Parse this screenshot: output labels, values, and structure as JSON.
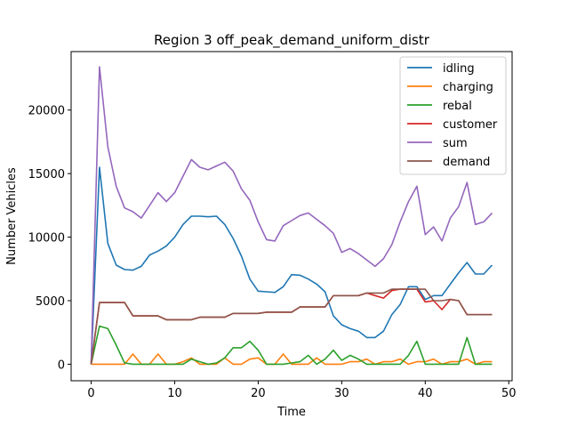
{
  "chart_data": {
    "type": "line",
    "title": "Region 3 off_peak_demand_uniform_distr",
    "xlabel": "Time",
    "ylabel": "Number Vehicles",
    "xlim": [
      -2.4,
      50.4
    ],
    "ylim": [
      -1300,
      24600
    ],
    "xticks": [
      0,
      10,
      20,
      30,
      40,
      50
    ],
    "yticks": [
      0,
      5000,
      10000,
      15000,
      20000
    ],
    "grid": false,
    "legend_position": "top-right",
    "x": [
      0,
      1,
      2,
      3,
      4,
      5,
      6,
      7,
      8,
      9,
      10,
      11,
      12,
      13,
      14,
      15,
      16,
      17,
      18,
      19,
      20,
      21,
      22,
      23,
      24,
      25,
      26,
      27,
      28,
      29,
      30,
      31,
      32,
      33,
      34,
      35,
      36,
      37,
      38,
      39,
      40,
      41,
      42,
      43,
      44,
      45,
      46,
      47,
      48
    ],
    "series": [
      {
        "name": "idling",
        "color": "#1f77b4",
        "values": [
          0,
          15500,
          9500,
          7800,
          7450,
          7400,
          7700,
          8600,
          8900,
          9300,
          10000,
          11000,
          11650,
          11650,
          11600,
          11650,
          11000,
          9900,
          8500,
          6700,
          5750,
          5700,
          5650,
          6100,
          7050,
          7000,
          6700,
          6300,
          5700,
          3800,
          3100,
          2800,
          2600,
          2100,
          2100,
          2600,
          3900,
          4700,
          6100,
          6100,
          5100,
          5400,
          5400,
          6300,
          7200,
          8000,
          7100,
          7100,
          7800
        ]
      },
      {
        "name": "charging",
        "color": "#ff7f0e",
        "values": [
          0,
          0,
          0,
          0,
          0,
          800,
          0,
          0,
          800,
          0,
          0,
          200,
          500,
          0,
          0,
          0,
          500,
          0,
          0,
          400,
          500,
          0,
          0,
          800,
          0,
          0,
          0,
          500,
          0,
          0,
          0,
          200,
          200,
          400,
          0,
          200,
          200,
          400,
          0,
          200,
          200,
          400,
          0,
          200,
          200,
          400,
          0,
          200,
          200
        ]
      },
      {
        "name": "rebal",
        "color": "#2ca02c",
        "values": [
          0,
          3000,
          2800,
          1500,
          100,
          0,
          0,
          0,
          0,
          0,
          0,
          0,
          400,
          200,
          0,
          100,
          500,
          1300,
          1300,
          1800,
          1100,
          0,
          0,
          0,
          100,
          200,
          700,
          0,
          400,
          1100,
          300,
          700,
          400,
          0,
          0,
          0,
          0,
          0,
          700,
          1800,
          0,
          0,
          0,
          0,
          0,
          2100,
          0,
          0,
          0
        ]
      },
      {
        "name": "customer",
        "color": "#d62728",
        "values": [
          0,
          4850,
          4850,
          4850,
          4850,
          3800,
          3800,
          3800,
          3800,
          3500,
          3500,
          3500,
          3500,
          3700,
          3700,
          3700,
          3700,
          4000,
          4000,
          4000,
          4000,
          4100,
          4100,
          4100,
          4100,
          4500,
          4500,
          4500,
          4500,
          5400,
          5400,
          5400,
          5400,
          5600,
          5400,
          5200,
          5800,
          5900,
          5900,
          5900,
          4900,
          5000,
          4300,
          5100,
          5000,
          3900,
          3900,
          3900,
          3900
        ]
      },
      {
        "name": "sum",
        "color": "#9467bd",
        "values": [
          0,
          23400,
          17100,
          14000,
          12300,
          12000,
          11500,
          12500,
          13500,
          12800,
          13500,
          14800,
          16100,
          15500,
          15300,
          15600,
          15900,
          15200,
          13800,
          12900,
          11200,
          9800,
          9700,
          10900,
          11300,
          11700,
          11900,
          11400,
          10900,
          10300,
          8800,
          9100,
          8700,
          8200,
          7700,
          8300,
          9400,
          11200,
          12800,
          14000,
          10200,
          10800,
          9700,
          11500,
          12400,
          14300,
          11000,
          11200,
          11900
        ]
      },
      {
        "name": "demand",
        "color": "#8c564b",
        "values": [
          0,
          4850,
          4850,
          4850,
          4850,
          3800,
          3800,
          3800,
          3800,
          3500,
          3500,
          3500,
          3500,
          3700,
          3700,
          3700,
          3700,
          4000,
          4000,
          4000,
          4000,
          4100,
          4100,
          4100,
          4100,
          4500,
          4500,
          4500,
          4500,
          5400,
          5400,
          5400,
          5400,
          5600,
          5600,
          5600,
          5900,
          5900,
          5900,
          5900,
          5900,
          5000,
          5000,
          5100,
          5000,
          3900,
          3900,
          3900,
          3900
        ]
      }
    ]
  }
}
